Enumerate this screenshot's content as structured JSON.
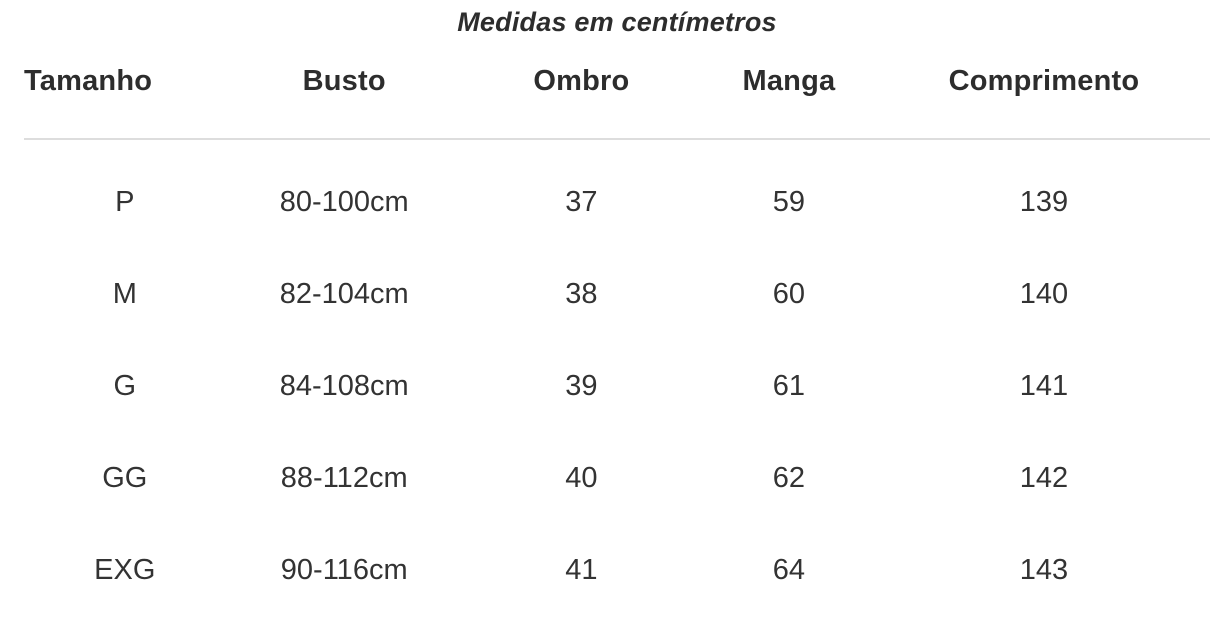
{
  "title": "Medidas em centímetros",
  "chart_data": {
    "type": "table",
    "title": "Medidas em centímetros",
    "unit": "cm",
    "columns": [
      "Tamanho",
      "Busto",
      "Ombro",
      "Manga",
      "Comprimento"
    ],
    "rows": [
      [
        "P",
        "80-100cm",
        "37",
        "59",
        "139"
      ],
      [
        "M",
        "82-104cm",
        "38",
        "60",
        "140"
      ],
      [
        "G",
        "84-108cm",
        "39",
        "61",
        "141"
      ],
      [
        "GG",
        "88-112cm",
        "40",
        "62",
        "142"
      ],
      [
        "EXG",
        "90-116cm",
        "41",
        "64",
        "143"
      ]
    ]
  },
  "colors": {
    "background": "#ffffff",
    "text": "#333333",
    "header_text": "#2d2d2d",
    "divider": "#dddddd"
  }
}
